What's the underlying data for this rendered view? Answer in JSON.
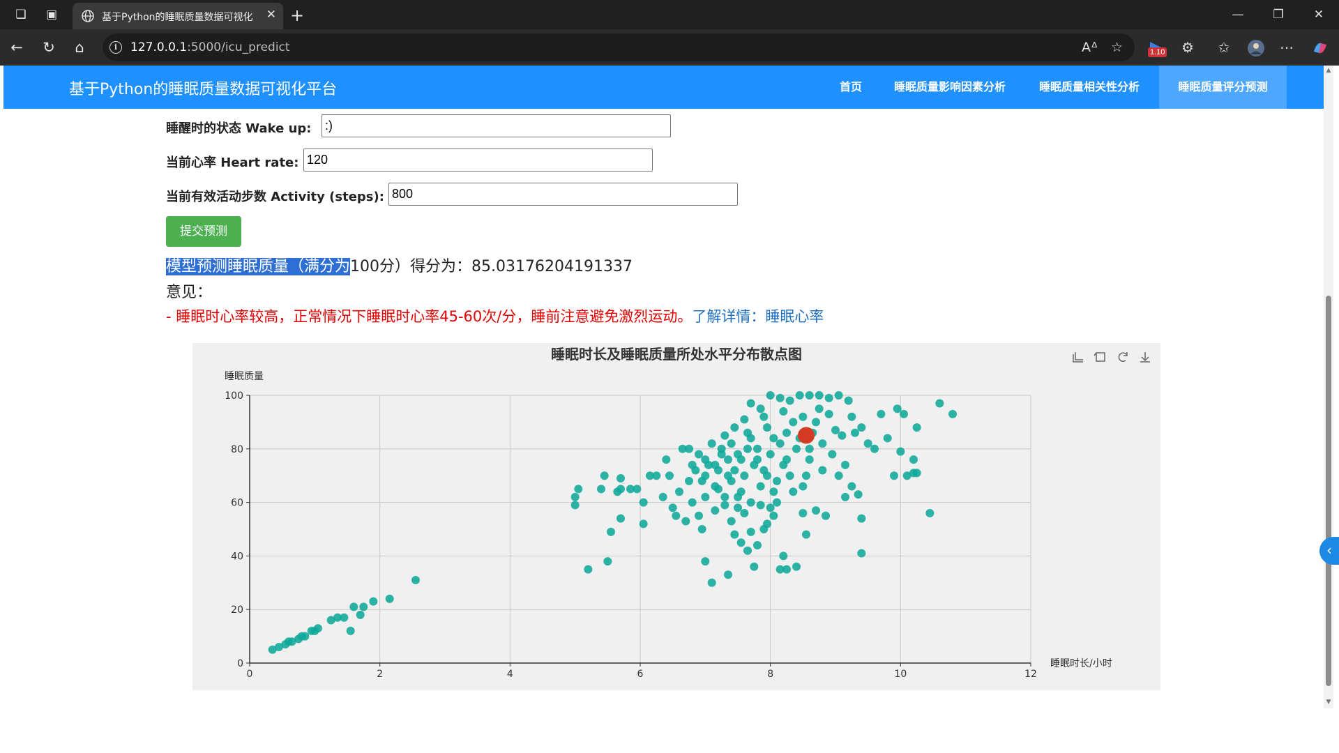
{
  "browser": {
    "tab_title": "基于Python的睡眠质量数据可视化",
    "url_host": "127.0.0.1",
    "url_path": ":5000/icu_predict",
    "extension_badge": "1.10"
  },
  "navbar": {
    "brand": "基于Python的睡眠质量数据可视化平台",
    "items": [
      {
        "label": "首页"
      },
      {
        "label": "睡眠质量影响因素分析"
      },
      {
        "label": "睡眠质量相关性分析"
      },
      {
        "label": "睡眠质量评分预测"
      }
    ],
    "active_index": 3
  },
  "form": {
    "wakeup_label": "睡醒时的状态 Wake up:",
    "wakeup_value": ":)",
    "heart_label": "当前心率 Heart rate:",
    "heart_value": "120",
    "activity_label": "当前有效活动步数 Activity (steps):",
    "activity_value": "800",
    "submit_label": "提交预测"
  },
  "result": {
    "selected_text": "模型预测睡眠质量（满分为",
    "rest_text": "100分）得分为：",
    "score": "85.03176204191337"
  },
  "advice": {
    "title": "意见：",
    "text": "- 睡眠时心率较高，正常情况下睡眠时心率45-60次/分，睡前注意避免激烈运动。",
    "link_prefix": "了解详情：",
    "link_text": "睡眠心率"
  },
  "chart_data": {
    "type": "scatter",
    "title": "睡眠时长及睡眠质量所处水平分布散点图",
    "xlabel": "睡眠时长/小时",
    "ylabel": "睡眠质量",
    "xlim": [
      0,
      12
    ],
    "ylim": [
      0,
      100
    ],
    "xticks": [
      0,
      2,
      4,
      6,
      8,
      10,
      12
    ],
    "yticks": [
      0,
      20,
      40,
      60,
      80,
      100
    ],
    "grid": true,
    "point_color": "#0fa89a",
    "highlight_color": "#d23a24",
    "toolbox_icons": [
      "zoom-icon",
      "zoom-reset-icon",
      "restore-icon",
      "download-icon"
    ],
    "series": [
      {
        "values": [
          [
            0.35,
            5
          ],
          [
            0.45,
            6
          ],
          [
            0.55,
            7
          ],
          [
            0.6,
            8
          ],
          [
            0.65,
            8
          ],
          [
            0.75,
            9
          ],
          [
            0.8,
            10
          ],
          [
            0.85,
            10
          ],
          [
            0.95,
            12
          ],
          [
            1.0,
            12
          ],
          [
            1.05,
            13
          ],
          [
            1.25,
            16
          ],
          [
            1.35,
            17
          ],
          [
            1.45,
            17
          ],
          [
            1.55,
            12
          ],
          [
            1.6,
            21
          ],
          [
            1.7,
            18
          ],
          [
            1.75,
            21
          ],
          [
            1.9,
            23
          ],
          [
            2.15,
            24
          ],
          [
            2.55,
            31
          ],
          [
            5.0,
            59
          ],
          [
            5.0,
            62
          ],
          [
            5.05,
            65
          ],
          [
            5.2,
            35
          ],
          [
            5.4,
            65
          ],
          [
            5.45,
            70
          ],
          [
            5.5,
            38
          ],
          [
            5.55,
            49
          ],
          [
            5.65,
            64
          ],
          [
            5.7,
            65
          ],
          [
            5.7,
            69
          ],
          [
            5.7,
            54
          ],
          [
            5.85,
            65
          ],
          [
            5.95,
            65
          ],
          [
            6.05,
            52
          ],
          [
            6.05,
            60
          ],
          [
            6.15,
            70
          ],
          [
            6.25,
            70
          ],
          [
            6.35,
            62
          ],
          [
            6.4,
            76
          ],
          [
            6.45,
            70
          ],
          [
            6.5,
            58
          ],
          [
            6.55,
            55
          ],
          [
            6.6,
            64
          ],
          [
            6.65,
            80
          ],
          [
            6.7,
            53
          ],
          [
            6.75,
            68
          ],
          [
            6.8,
            60
          ],
          [
            6.85,
            72
          ],
          [
            6.9,
            55
          ],
          [
            6.95,
            50
          ],
          [
            7.0,
            38
          ],
          [
            7.0,
            62
          ],
          [
            7.05,
            74
          ],
          [
            7.1,
            30
          ],
          [
            7.15,
            57
          ],
          [
            7.2,
            65
          ],
          [
            7.25,
            78
          ],
          [
            7.3,
            59
          ],
          [
            7.35,
            33
          ],
          [
            7.4,
            53
          ],
          [
            7.45,
            48
          ],
          [
            7.5,
            62
          ],
          [
            7.55,
            45
          ],
          [
            7.6,
            56
          ],
          [
            7.65,
            42
          ],
          [
            7.7,
            49
          ],
          [
            7.75,
            36
          ],
          [
            7.8,
            44
          ],
          [
            7.85,
            59
          ],
          [
            7.9,
            50
          ],
          [
            7.95,
            52
          ],
          [
            8.0,
            58
          ],
          [
            8.05,
            55
          ],
          [
            8.1,
            60
          ],
          [
            8.15,
            35
          ],
          [
            8.2,
            40
          ],
          [
            8.25,
            35
          ],
          [
            8.35,
            64
          ],
          [
            8.4,
            36
          ],
          [
            8.5,
            56
          ],
          [
            8.55,
            48
          ],
          [
            8.7,
            57
          ],
          [
            8.85,
            55
          ],
          [
            9.05,
            70
          ],
          [
            9.15,
            62
          ],
          [
            9.25,
            66
          ],
          [
            9.35,
            63
          ],
          [
            9.4,
            54
          ],
          [
            9.4,
            41
          ],
          [
            9.5,
            82
          ],
          [
            9.6,
            80
          ],
          [
            9.7,
            93
          ],
          [
            9.8,
            84
          ],
          [
            9.9,
            70
          ],
          [
            9.95,
            95
          ],
          [
            10.05,
            93
          ],
          [
            10.0,
            79
          ],
          [
            10.1,
            70
          ],
          [
            10.2,
            71
          ],
          [
            10.2,
            76
          ],
          [
            10.25,
            71
          ],
          [
            10.25,
            88
          ],
          [
            10.45,
            56
          ],
          [
            10.6,
            97
          ],
          [
            10.8,
            93
          ],
          [
            7.1,
            82
          ],
          [
            7.3,
            85
          ],
          [
            7.45,
            88
          ],
          [
            7.6,
            91
          ],
          [
            7.7,
            97
          ],
          [
            7.85,
            95
          ],
          [
            8.0,
            100
          ],
          [
            8.15,
            99
          ],
          [
            8.3,
            98
          ],
          [
            8.45,
            100
          ],
          [
            8.6,
            100
          ],
          [
            8.75,
            100
          ],
          [
            8.9,
            99
          ],
          [
            9.05,
            100
          ],
          [
            9.2,
            98
          ],
          [
            8.5,
            92
          ],
          [
            8.7,
            90
          ],
          [
            8.9,
            93
          ],
          [
            9.0,
            87
          ],
          [
            9.1,
            85
          ],
          [
            9.3,
            86
          ],
          [
            8.95,
            78
          ],
          [
            9.15,
            74
          ],
          [
            8.6,
            76
          ],
          [
            8.8,
            72
          ],
          [
            8.3,
            70
          ],
          [
            8.5,
            66
          ],
          [
            8.2,
            74
          ],
          [
            7.9,
            72
          ],
          [
            7.6,
            70
          ],
          [
            7.4,
            68
          ],
          [
            7.2,
            72
          ],
          [
            7.0,
            70
          ],
          [
            7.5,
            78
          ],
          [
            7.8,
            80
          ],
          [
            8.05,
            84
          ],
          [
            8.25,
            86
          ],
          [
            8.4,
            80
          ],
          [
            7.95,
            88
          ],
          [
            7.7,
            84
          ],
          [
            7.35,
            76
          ],
          [
            7.15,
            66
          ],
          [
            6.95,
            68
          ],
          [
            6.8,
            74
          ],
          [
            7.55,
            64
          ],
          [
            7.85,
            66
          ],
          [
            8.1,
            68
          ],
          [
            8.35,
            90
          ],
          [
            8.2,
            94
          ],
          [
            7.9,
            92
          ],
          [
            7.65,
            80
          ],
          [
            7.45,
            72
          ],
          [
            7.25,
            80
          ],
          [
            7.0,
            76
          ],
          [
            7.8,
            76
          ],
          [
            8.0,
            78
          ],
          [
            8.15,
            82
          ],
          [
            8.45,
            84
          ],
          [
            8.65,
            86
          ],
          [
            8.8,
            82
          ],
          [
            8.55,
            70
          ],
          [
            8.05,
            64
          ],
          [
            7.7,
            60
          ],
          [
            7.5,
            58
          ],
          [
            7.3,
            62
          ],
          [
            7.75,
            74
          ],
          [
            7.55,
            76
          ],
          [
            7.35,
            70
          ],
          [
            7.95,
            70
          ],
          [
            8.25,
            76
          ],
          [
            8.6,
            80
          ],
          [
            8.75,
            95
          ],
          [
            9.25,
            92
          ],
          [
            9.4,
            88
          ],
          [
            6.9,
            78
          ],
          [
            6.75,
            80
          ],
          [
            7.15,
            74
          ],
          [
            7.65,
            86
          ],
          [
            7.4,
            82
          ]
        ]
      }
    ],
    "highlight_point": {
      "x": 8.55,
      "y": 85.03
    }
  }
}
